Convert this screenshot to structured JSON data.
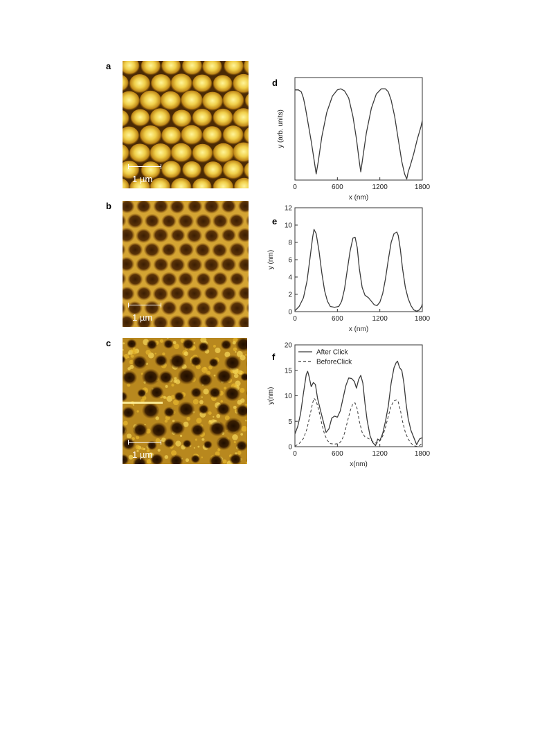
{
  "figure": {
    "panels": {
      "a": {
        "letter": "a",
        "scale_label": "1 µm",
        "image": "afm-hexagonal-dots-bright"
      },
      "b": {
        "letter": "b",
        "scale_label": "1 µm",
        "image": "afm-hexagonal-holes-dark"
      },
      "c": {
        "letter": "c",
        "scale_label": "1 µm",
        "image": "afm-irregular-holes"
      },
      "d": {
        "letter": "d"
      },
      "e": {
        "letter": "e"
      },
      "f": {
        "letter": "f"
      }
    },
    "colors": {
      "afm_dark": "#3b1f00",
      "afm_mid": "#a8690c",
      "afm_bright": "#f4dc5a",
      "line": "#333333"
    }
  },
  "chart_data": [
    {
      "id": "d",
      "type": "line",
      "title": "",
      "xlabel": "x (nm)",
      "ylabel": "y (arb. units)",
      "xlim": [
        0,
        1800
      ],
      "ylim": [
        0,
        1
      ],
      "xticks": [
        0,
        600,
        1200,
        1800
      ],
      "yticks": [],
      "series": [
        {
          "style": "solid",
          "x": [
            0,
            50,
            90,
            120,
            150,
            190,
            230,
            270,
            300,
            330,
            380,
            450,
            530,
            600,
            650,
            700,
            760,
            820,
            870,
            910,
            930,
            960,
            1010,
            1080,
            1150,
            1220,
            1280,
            1320,
            1360,
            1410,
            1460,
            1510,
            1550,
            1580,
            1600,
            1630,
            1680,
            1730,
            1780,
            1800
          ],
          "y": [
            0.88,
            0.88,
            0.86,
            0.8,
            0.7,
            0.54,
            0.38,
            0.2,
            0.06,
            0.18,
            0.42,
            0.66,
            0.82,
            0.88,
            0.89,
            0.87,
            0.8,
            0.62,
            0.4,
            0.18,
            0.08,
            0.22,
            0.46,
            0.7,
            0.84,
            0.89,
            0.89,
            0.86,
            0.78,
            0.62,
            0.4,
            0.18,
            0.06,
            0.01,
            0.08,
            0.14,
            0.26,
            0.4,
            0.52,
            0.58
          ]
        }
      ]
    },
    {
      "id": "e",
      "type": "line",
      "title": "",
      "xlabel": "x (nm)",
      "ylabel": "y (nm)",
      "xlim": [
        0,
        1800
      ],
      "ylim": [
        0,
        12
      ],
      "xticks": [
        0,
        600,
        1200,
        1800
      ],
      "yticks": [
        0,
        2,
        4,
        6,
        8,
        10,
        12
      ],
      "series": [
        {
          "style": "solid",
          "x": [
            0,
            60,
            120,
            170,
            210,
            250,
            270,
            300,
            340,
            380,
            420,
            460,
            500,
            560,
            620,
            660,
            700,
            740,
            780,
            820,
            850,
            880,
            910,
            950,
            990,
            1040,
            1080,
            1120,
            1160,
            1200,
            1240,
            1280,
            1320,
            1360,
            1400,
            1440,
            1460,
            1490,
            1520,
            1560,
            1600,
            1640,
            1680,
            1720,
            1760,
            1790,
            1800
          ],
          "y": [
            0.1,
            0.6,
            1.6,
            3.5,
            6.0,
            8.6,
            9.5,
            9.0,
            7.0,
            4.5,
            2.4,
            1.2,
            0.6,
            0.5,
            0.6,
            1.2,
            2.6,
            4.8,
            7.0,
            8.5,
            8.6,
            7.4,
            5.0,
            2.8,
            1.9,
            1.6,
            1.2,
            0.8,
            0.7,
            1.1,
            2.1,
            3.8,
            6.0,
            8.0,
            9.0,
            9.2,
            8.8,
            7.2,
            5.0,
            2.8,
            1.5,
            0.7,
            0.2,
            0.05,
            0.2,
            0.6,
            0.9
          ]
        }
      ]
    },
    {
      "id": "f",
      "type": "line",
      "title": "",
      "xlabel": "x(nm)",
      "ylabel": "y(nm)",
      "xlim": [
        0,
        1800
      ],
      "ylim": [
        0,
        20
      ],
      "xticks": [
        0,
        600,
        1200,
        1800
      ],
      "yticks": [
        0,
        5,
        10,
        15,
        20
      ],
      "legend": "top-left",
      "series": [
        {
          "name": "After Click",
          "style": "solid",
          "x": [
            0,
            40,
            80,
            120,
            160,
            180,
            200,
            230,
            260,
            290,
            320,
            360,
            400,
            440,
            480,
            520,
            560,
            600,
            640,
            680,
            720,
            760,
            800,
            840,
            870,
            900,
            930,
            960,
            990,
            1020,
            1060,
            1100,
            1140,
            1170,
            1200,
            1240,
            1280,
            1320,
            1360,
            1400,
            1430,
            1450,
            1480,
            1510,
            1540,
            1570,
            1600,
            1640,
            1680,
            1720,
            1760,
            1800
          ],
          "y": [
            2.5,
            4.0,
            6.5,
            10.5,
            14.2,
            14.8,
            13.8,
            11.8,
            12.6,
            12.2,
            9.5,
            7.2,
            5.0,
            2.8,
            3.5,
            5.6,
            6.0,
            5.8,
            7.0,
            9.5,
            12.0,
            13.5,
            13.4,
            12.8,
            11.5,
            13.2,
            14.0,
            12.5,
            8.5,
            5.2,
            2.2,
            0.8,
            0.2,
            1.5,
            1.2,
            2.6,
            5.0,
            8.0,
            12.5,
            15.5,
            16.5,
            16.8,
            15.5,
            15.0,
            12.5,
            8.5,
            5.5,
            3.2,
            1.8,
            0.4,
            1.5,
            1.8
          ]
        },
        {
          "name": "BeforeClick",
          "style": "dashed",
          "x": [
            0,
            60,
            120,
            170,
            210,
            250,
            270,
            300,
            340,
            380,
            420,
            460,
            500,
            560,
            620,
            660,
            700,
            740,
            780,
            820,
            850,
            880,
            910,
            950,
            990,
            1040,
            1080,
            1120,
            1160,
            1200,
            1240,
            1280,
            1320,
            1360,
            1400,
            1440,
            1460,
            1490,
            1520,
            1560,
            1600,
            1640,
            1680,
            1720,
            1760,
            1790,
            1800
          ],
          "y": [
            0.1,
            0.6,
            1.6,
            3.5,
            6.0,
            8.6,
            9.5,
            9.0,
            7.0,
            4.5,
            2.4,
            1.2,
            0.6,
            0.5,
            0.6,
            1.2,
            2.6,
            4.8,
            7.0,
            8.5,
            8.6,
            7.4,
            5.0,
            2.8,
            1.9,
            1.6,
            1.2,
            0.8,
            0.7,
            1.1,
            2.1,
            3.8,
            6.0,
            8.0,
            9.0,
            9.2,
            8.8,
            7.2,
            5.0,
            2.8,
            1.5,
            0.7,
            0.2,
            0.05,
            0.2,
            0.6,
            0.9
          ]
        }
      ]
    }
  ]
}
